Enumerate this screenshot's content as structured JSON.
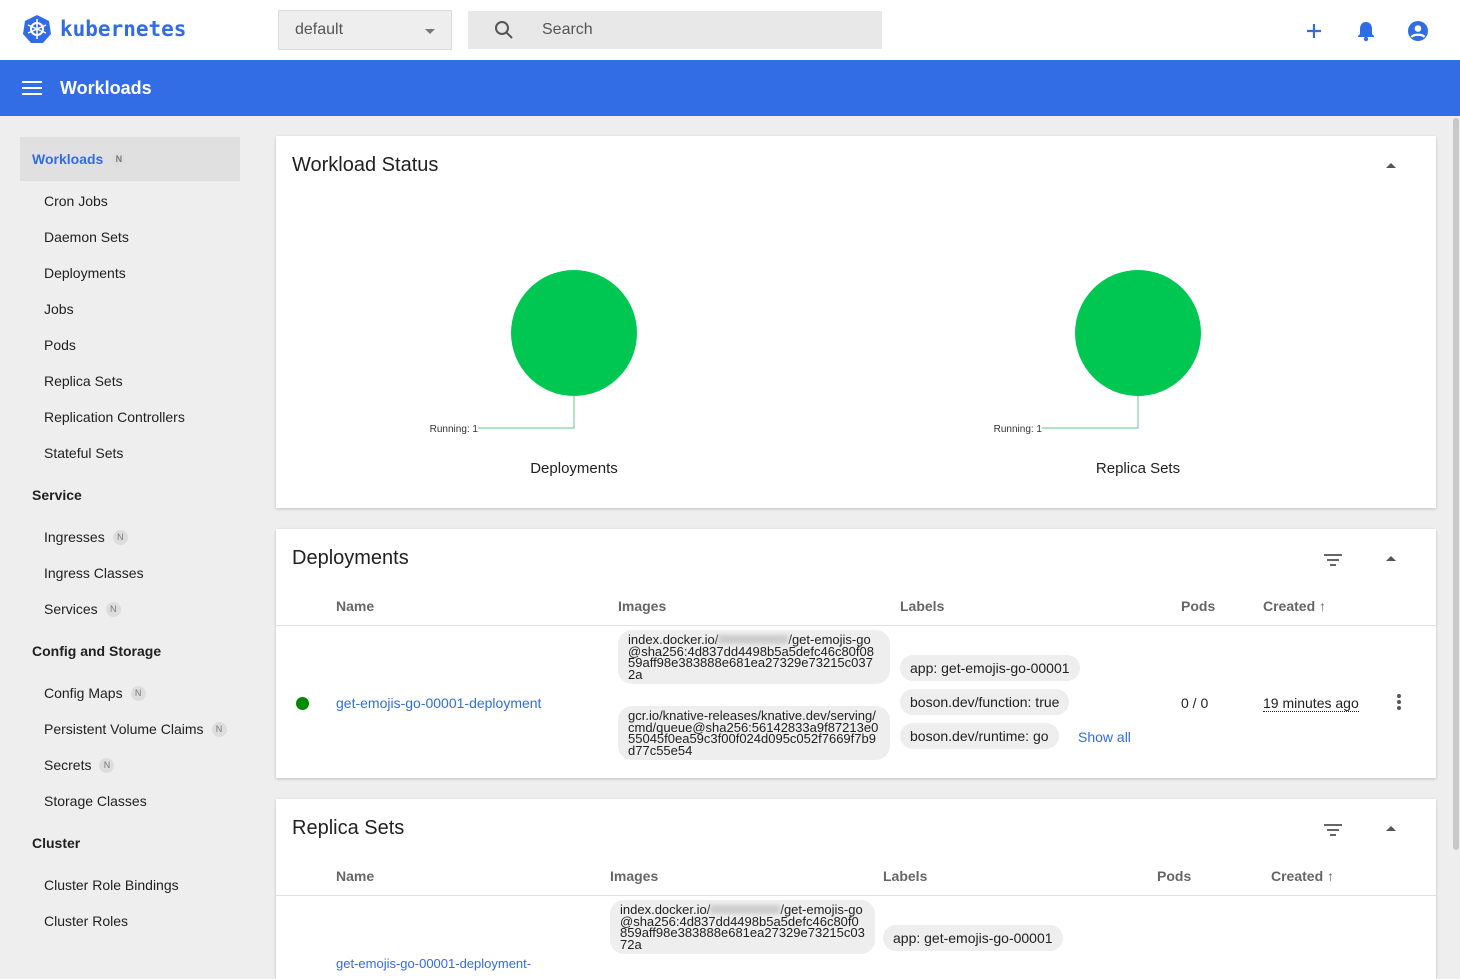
{
  "header": {
    "brand": "kubernetes",
    "namespace": "default",
    "search_placeholder": "Search"
  },
  "toolbar": {
    "title": "Workloads"
  },
  "sidebar": {
    "active": {
      "label": "Workloads",
      "badge": "N"
    },
    "workloads": [
      "Cron Jobs",
      "Daemon Sets",
      "Deployments",
      "Jobs",
      "Pods",
      "Replica Sets",
      "Replication Controllers",
      "Stateful Sets"
    ],
    "service_header": "Service",
    "service": [
      {
        "label": "Ingresses",
        "badge": "N"
      },
      {
        "label": "Ingress Classes"
      },
      {
        "label": "Services",
        "badge": "N"
      }
    ],
    "config_header": "Config and Storage",
    "config": [
      {
        "label": "Config Maps",
        "badge": "N"
      },
      {
        "label": "Persistent Volume Claims",
        "badge": "N"
      },
      {
        "label": "Secrets",
        "badge": "N"
      },
      {
        "label": "Storage Classes"
      }
    ],
    "cluster_header": "Cluster",
    "cluster": [
      "Cluster Role Bindings",
      "Cluster Roles"
    ]
  },
  "workload_status": {
    "title": "Workload Status",
    "charts": [
      {
        "name": "Deployments",
        "legend": "Running: 1",
        "running": 1,
        "color": "#00c752"
      },
      {
        "name": "Replica Sets",
        "legend": "Running: 1",
        "running": 1,
        "color": "#00c752"
      }
    ]
  },
  "deployments": {
    "title": "Deployments",
    "columns": [
      "Name",
      "Images",
      "Labels",
      "Pods",
      "Created"
    ],
    "rows": [
      {
        "name": "get-emojis-go-00001-deployment",
        "images": [
          "index.docker.io/",
          "/get-emojis-go@sha256:4d837dd4498b5a5defc46c80f0859aff98e383888e681ea27329e73215c0372a",
          "gcr.io/knative-releases/knative.dev/serving/cmd/queue@sha256:56142833a9f87213e055045f0ea59c3f00f024d095c052f7669f7b9d77c55e54"
        ],
        "labels": [
          "app: get-emojis-go-00001",
          "boson.dev/function: true",
          "boson.dev/runtime: go"
        ],
        "show_all": "Show all",
        "pods": "0 / 0",
        "created": "19 minutes ago",
        "status_color": "#008a00"
      }
    ]
  },
  "replica_sets": {
    "title": "Replica Sets",
    "columns": [
      "Name",
      "Images",
      "Labels",
      "Pods",
      "Created"
    ],
    "rows": [
      {
        "name": "get-emojis-go-00001-deployment-",
        "images": [
          "index.docker.io/",
          "/get-emojis-go@sha256:4d837dd4498b5a5defc46c80f0859aff98e383888e681ea27329e73215c0372a"
        ],
        "labels": [
          "app: get-emojis-go-00001"
        ]
      }
    ]
  }
}
